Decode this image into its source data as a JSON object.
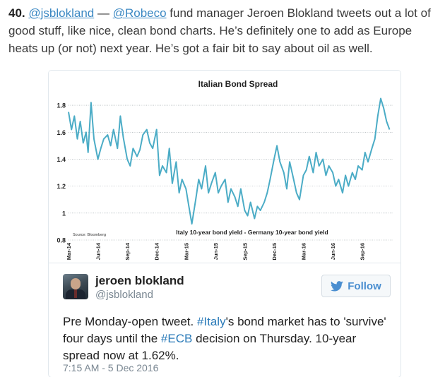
{
  "intro": {
    "number": "40.",
    "handle1": "@jsblokland",
    "dash": " — ",
    "handle2": "@Robeco",
    "text": " fund manager Jeroen Blokland tweets out a lot of good stuff, like nice, clean bond charts. He’s definitely one to add as Europe heats up (or not) next year. He’s got a fair bit to say about oil as well."
  },
  "tweet": {
    "author_name": "jeroen blokland",
    "author_handle": "@jsblokland",
    "follow_label": "Follow",
    "text_1": "Pre Monday-open tweet. ",
    "tag_1": "#Italy",
    "text_2": "'s bond market has to 'survive' four days until the ",
    "tag_2": "#ECB",
    "text_3": " decision on Thursday. 10-year spread now at 1.62%.",
    "timestamp": "7:15 AM - 5 Dec 2016",
    "colors": {
      "link": "#2b7bb9",
      "follow_text": "#4a8ed0"
    }
  },
  "chart_data": {
    "type": "line",
    "title": "Italian Bond Spread",
    "series_label": "Italy 10-year bond yield - Germany 10-year bond yield",
    "source": "Source: Bloomberg",
    "ylim": [
      0.8,
      1.9
    ],
    "yticks": [
      0.8,
      1,
      1.2,
      1.4,
      1.6,
      1.8
    ],
    "ytick_labels": [
      "0.8",
      "1",
      "1.2",
      "1.4",
      "1.6",
      "1.8"
    ],
    "xticks": [
      0,
      3,
      6,
      9,
      12,
      15,
      18,
      21,
      24,
      27,
      30
    ],
    "xtick_labels": [
      "Mar-14",
      "Jun-14",
      "Sep-14",
      "Dec-14",
      "Mar-15",
      "Jun-15",
      "Sep-15",
      "Dec-15",
      "Mar-16",
      "Jun-16",
      "Sep-16"
    ],
    "xlim": [
      0,
      33.2
    ],
    "grid": true,
    "color": "#4bacc6",
    "series": [
      {
        "x": [
          0,
          0.3,
          0.6,
          0.9,
          1.2,
          1.5,
          1.8,
          2.0,
          2.3,
          2.6,
          3.0,
          3.3,
          3.6,
          4.0,
          4.3,
          4.6,
          5.0,
          5.3,
          5.6,
          6.0,
          6.3,
          6.6,
          7.0,
          7.3,
          7.6,
          8.0,
          8.3,
          8.6,
          9.0,
          9.3,
          9.6,
          10.0,
          10.3,
          10.6,
          11.0,
          11.3,
          11.6,
          12.0,
          12.3,
          12.6,
          13.0,
          13.3,
          13.6,
          14.0,
          14.3,
          14.6,
          15.0,
          15.3,
          15.6,
          16.0,
          16.3,
          16.6,
          17.0,
          17.3,
          17.6,
          18.0,
          18.3,
          18.6,
          19.0,
          19.3,
          19.6,
          20.0,
          20.3,
          20.6,
          21.0,
          21.3,
          21.6,
          22.0,
          22.3,
          22.6,
          23.0,
          23.3,
          23.6,
          24.0,
          24.3,
          24.6,
          25.0,
          25.3,
          25.6,
          26.0,
          26.3,
          26.6,
          27.0,
          27.3,
          27.6,
          28.0,
          28.3,
          28.6,
          29.0,
          29.3,
          29.6,
          30.0,
          30.3,
          30.6,
          31.0,
          31.3,
          31.6,
          31.9,
          32.2,
          32.5,
          32.8
        ],
        "values": [
          1.75,
          1.62,
          1.72,
          1.55,
          1.68,
          1.52,
          1.6,
          1.45,
          1.82,
          1.55,
          1.4,
          1.48,
          1.55,
          1.58,
          1.5,
          1.62,
          1.48,
          1.72,
          1.56,
          1.4,
          1.35,
          1.48,
          1.42,
          1.47,
          1.58,
          1.62,
          1.52,
          1.48,
          1.62,
          1.28,
          1.35,
          1.3,
          1.48,
          1.22,
          1.38,
          1.15,
          1.25,
          1.18,
          1.05,
          0.92,
          1.1,
          1.25,
          1.18,
          1.35,
          1.15,
          1.22,
          1.3,
          1.15,
          1.2,
          1.25,
          1.08,
          1.18,
          1.12,
          1.05,
          1.18,
          1.02,
          0.98,
          1.08,
          0.96,
          1.05,
          1.02,
          1.08,
          1.15,
          1.25,
          1.4,
          1.5,
          1.38,
          1.3,
          1.18,
          1.38,
          1.25,
          1.15,
          1.1,
          1.28,
          1.32,
          1.42,
          1.3,
          1.45,
          1.35,
          1.4,
          1.28,
          1.35,
          1.3,
          1.2,
          1.25,
          1.15,
          1.28,
          1.2,
          1.3,
          1.25,
          1.35,
          1.32,
          1.45,
          1.38,
          1.48,
          1.55,
          1.72,
          1.85,
          1.78,
          1.68,
          1.62
        ]
      }
    ]
  }
}
